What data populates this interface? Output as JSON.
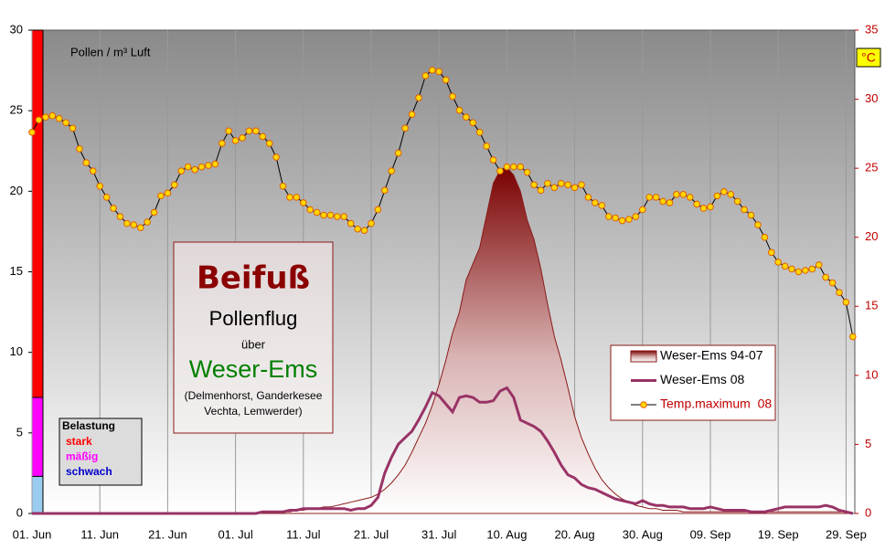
{
  "chart_data": {
    "type": "line",
    "y_label": "Pollen / m³ Luft",
    "y2_label": "°C",
    "annotation": {
      "title": "Beifuß",
      "lines": [
        "Pollenflug",
        "über",
        "Weser-Ems",
        "(Delmenhorst, Ganderkesee",
        "Vechta, Lemwerder)"
      ]
    },
    "load_legend": {
      "title": "Belastung",
      "levels": [
        {
          "name": "stark",
          "color": "#ff0000",
          "from": 7.2,
          "to": 30
        },
        {
          "name": "mäßig",
          "color": "#ff00ff",
          "from": 2.3,
          "to": 7.2
        },
        {
          "name": "schwach",
          "color": "#99ccee",
          "from": 0,
          "to": 2.3
        }
      ]
    },
    "categories": [
      "01. Jun",
      null,
      null,
      null,
      null,
      null,
      null,
      null,
      null,
      null,
      "11. Jun",
      null,
      null,
      null,
      null,
      null,
      null,
      null,
      null,
      null,
      "21. Jun",
      null,
      null,
      null,
      null,
      null,
      null,
      null,
      null,
      null,
      "01. Jul",
      null,
      null,
      null,
      null,
      null,
      null,
      null,
      null,
      null,
      "11. Jul",
      null,
      null,
      null,
      null,
      null,
      null,
      null,
      null,
      null,
      "21. Jul",
      null,
      null,
      null,
      null,
      null,
      null,
      null,
      null,
      null,
      "31. Jul",
      null,
      null,
      null,
      null,
      null,
      null,
      null,
      null,
      null,
      "10. Aug",
      null,
      null,
      null,
      null,
      null,
      null,
      null,
      null,
      null,
      "20. Aug",
      null,
      null,
      null,
      null,
      null,
      null,
      null,
      null,
      null,
      "30. Aug",
      null,
      null,
      null,
      null,
      null,
      null,
      null,
      null,
      null,
      "09. Sep",
      null,
      null,
      null,
      null,
      null,
      null,
      null,
      null,
      null,
      "19. Sep",
      null,
      null,
      null,
      null,
      null,
      null,
      null,
      null,
      null,
      "29. Sep",
      null
    ],
    "ylim": [
      0,
      30
    ],
    "yticks": [
      0,
      5,
      10,
      15,
      20,
      25,
      30
    ],
    "y2lim": [
      0,
      35
    ],
    "y2ticks": [
      0,
      5,
      10,
      15,
      20,
      25,
      30,
      35
    ],
    "series": [
      {
        "name": "Weser-Ems 94-07",
        "type": "area",
        "color": "#8b1a1a",
        "values": [
          0,
          0,
          0,
          0,
          0,
          0,
          0,
          0,
          0,
          0,
          0,
          0,
          0,
          0,
          0,
          0,
          0,
          0,
          0,
          0,
          0,
          0,
          0,
          0,
          0,
          0,
          0,
          0,
          0,
          0,
          0,
          0,
          0,
          0,
          0,
          0,
          0.1,
          0.1,
          0.1,
          0.2,
          0.2,
          0.3,
          0.3,
          0.4,
          0.4,
          0.5,
          0.6,
          0.7,
          0.8,
          0.9,
          1.0,
          1.2,
          1.5,
          1.9,
          2.4,
          3.0,
          3.8,
          4.7,
          5.6,
          6.7,
          8.0,
          9.5,
          11.2,
          12.5,
          14.5,
          15.5,
          16.5,
          18.5,
          20.5,
          21.3,
          21.5,
          21.0,
          20.0,
          18.2,
          17.0,
          15.2,
          13.0,
          11.0,
          9.5,
          7.8,
          6.0,
          4.7,
          3.7,
          2.8,
          2.1,
          1.6,
          1.2,
          0.9,
          0.7,
          0.5,
          0.4,
          0.3,
          0.3,
          0.2,
          0.2,
          0.2,
          0.1,
          0.1,
          0.1,
          0.1,
          0.1,
          0.1,
          0.1,
          0.1,
          0.1,
          0.1,
          0.1,
          0.1,
          0.1,
          0.1,
          0.1,
          0.1,
          0.1,
          0.1,
          0.1,
          0.1,
          0.1,
          0.1,
          0.1,
          0.1,
          0.1,
          0
        ]
      },
      {
        "name": "Weser-Ems 08",
        "color": "#993366",
        "values": [
          0,
          0,
          0,
          0,
          0,
          0,
          0,
          0,
          0,
          0,
          0,
          0,
          0,
          0,
          0,
          0,
          0,
          0,
          0,
          0,
          0,
          0,
          0,
          0,
          0,
          0,
          0,
          0,
          0,
          0,
          0,
          0,
          0,
          0,
          0.1,
          0.1,
          0.1,
          0.1,
          0.2,
          0.2,
          0.3,
          0.3,
          0.3,
          0.3,
          0.3,
          0.3,
          0.3,
          0.2,
          0.3,
          0.3,
          0.5,
          1.0,
          2.5,
          3.5,
          4.3,
          4.7,
          5.1,
          5.8,
          6.6,
          7.5,
          7.3,
          6.8,
          6.3,
          7.2,
          7.3,
          7.2,
          6.9,
          6.9,
          7.0,
          7.6,
          7.8,
          7.2,
          5.8,
          5.6,
          5.4,
          5.1,
          4.5,
          3.8,
          3.0,
          2.4,
          2.2,
          1.8,
          1.6,
          1.5,
          1.3,
          1.1,
          0.9,
          0.8,
          0.7,
          0.6,
          0.8,
          0.6,
          0.5,
          0.5,
          0.4,
          0.4,
          0.4,
          0.3,
          0.3,
          0.3,
          0.4,
          0.3,
          0.2,
          0.2,
          0.2,
          0.2,
          0.1,
          0.1,
          0.1,
          0.2,
          0.3,
          0.4,
          0.4,
          0.4,
          0.4,
          0.4,
          0.4,
          0.5,
          0.4,
          0.2,
          0.1,
          0
        ]
      },
      {
        "name": "Temp.maximum  08",
        "color": "#ffd700",
        "axis": "y2",
        "values": [
          27.6,
          28.5,
          28.7,
          28.8,
          28.6,
          28.3,
          27.9,
          26.4,
          25.4,
          24.8,
          23.7,
          22.9,
          22.1,
          21.5,
          21.0,
          20.9,
          20.7,
          21.1,
          21.8,
          23.0,
          23.2,
          23.8,
          24.8,
          25.1,
          24.9,
          25.1,
          25.2,
          25.3,
          26.8,
          27.7,
          27.0,
          27.2,
          27.7,
          27.7,
          27.3,
          26.8,
          25.8,
          23.7,
          22.9,
          22.9,
          22.5,
          22.0,
          21.8,
          21.6,
          21.6,
          21.5,
          21.5,
          21.0,
          20.6,
          20.5,
          21.0,
          22.0,
          23.4,
          24.8,
          26.1,
          27.9,
          28.9,
          30.1,
          31.7,
          32.1,
          32.0,
          31.4,
          30.2,
          29.2,
          28.7,
          28.3,
          27.6,
          26.6,
          25.6,
          24.8,
          25.1,
          25.1,
          25.1,
          24.7,
          23.8,
          23.4,
          23.9,
          23.6,
          23.9,
          23.8,
          23.6,
          23.8,
          22.9,
          22.5,
          22.3,
          21.5,
          21.4,
          21.2,
          21.3,
          21.5,
          22.0,
          22.9,
          22.9,
          22.6,
          22.5,
          23.1,
          23.1,
          22.9,
          22.4,
          22.1,
          22.2,
          23.0,
          23.3,
          23.1,
          22.6,
          22.0,
          21.6,
          20.9,
          20.0,
          18.9,
          18.2,
          17.9,
          17.7,
          17.5,
          17.6,
          17.7,
          18.0,
          17.1,
          16.7,
          16.0,
          15.3,
          12.8
        ]
      }
    ]
  }
}
